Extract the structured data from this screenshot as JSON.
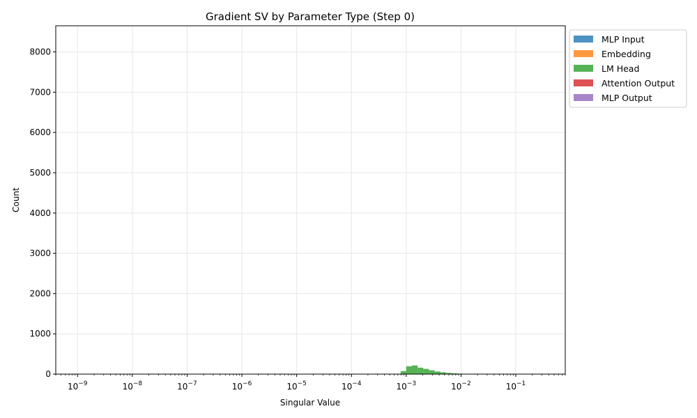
{
  "chart_data": {
    "type": "bar",
    "title": "Gradient SV by Parameter Type (Step 0)",
    "xlabel": "Singular Value",
    "ylabel": "Count",
    "x_scale": "log",
    "xlim": [
      4e-10,
      0.8
    ],
    "ylim": [
      0,
      8650
    ],
    "grid": true,
    "legend_position": "outside-right-top",
    "x_ticks": [
      {
        "value": 1e-09,
        "base": "10",
        "exp": "−9"
      },
      {
        "value": 1e-08,
        "base": "10",
        "exp": "−8"
      },
      {
        "value": 1e-07,
        "base": "10",
        "exp": "−7"
      },
      {
        "value": 1e-06,
        "base": "10",
        "exp": "−6"
      },
      {
        "value": 1e-05,
        "base": "10",
        "exp": "−5"
      },
      {
        "value": 0.0001,
        "base": "10",
        "exp": "−4"
      },
      {
        "value": 0.001,
        "base": "10",
        "exp": "−3"
      },
      {
        "value": 0.01,
        "base": "10",
        "exp": "−2"
      },
      {
        "value": 0.1,
        "base": "10",
        "exp": "−1"
      }
    ],
    "y_ticks": [
      0,
      1000,
      2000,
      3000,
      4000,
      5000,
      6000,
      7000,
      8000
    ],
    "series": [
      {
        "name": "MLP Input",
        "color": "#1f77b4",
        "bins": []
      },
      {
        "name": "Embedding",
        "color": "#ff7f0e",
        "bins": []
      },
      {
        "name": "LM Head",
        "color": "#2ca02c",
        "bins": [
          {
            "x0": 0.00079,
            "x1": 0.001,
            "count": 75
          },
          {
            "x0": 0.001,
            "x1": 0.00127,
            "count": 195
          },
          {
            "x0": 0.00127,
            "x1": 0.00162,
            "count": 215
          },
          {
            "x0": 0.00162,
            "x1": 0.00205,
            "count": 160
          },
          {
            "x0": 0.00205,
            "x1": 0.0026,
            "count": 130
          },
          {
            "x0": 0.0026,
            "x1": 0.0033,
            "count": 95
          },
          {
            "x0": 0.0033,
            "x1": 0.0042,
            "count": 65
          },
          {
            "x0": 0.0042,
            "x1": 0.0053,
            "count": 45
          },
          {
            "x0": 0.0053,
            "x1": 0.0068,
            "count": 30
          },
          {
            "x0": 0.0068,
            "x1": 0.0086,
            "count": 20
          },
          {
            "x0": 0.0086,
            "x1": 0.0109,
            "count": 12
          },
          {
            "x0": 0.0109,
            "x1": 0.0139,
            "count": 5
          }
        ]
      },
      {
        "name": "Attention Output",
        "color": "#d62728",
        "bins": []
      },
      {
        "name": "MLP Output",
        "color": "#9467bd",
        "bins": []
      }
    ]
  }
}
